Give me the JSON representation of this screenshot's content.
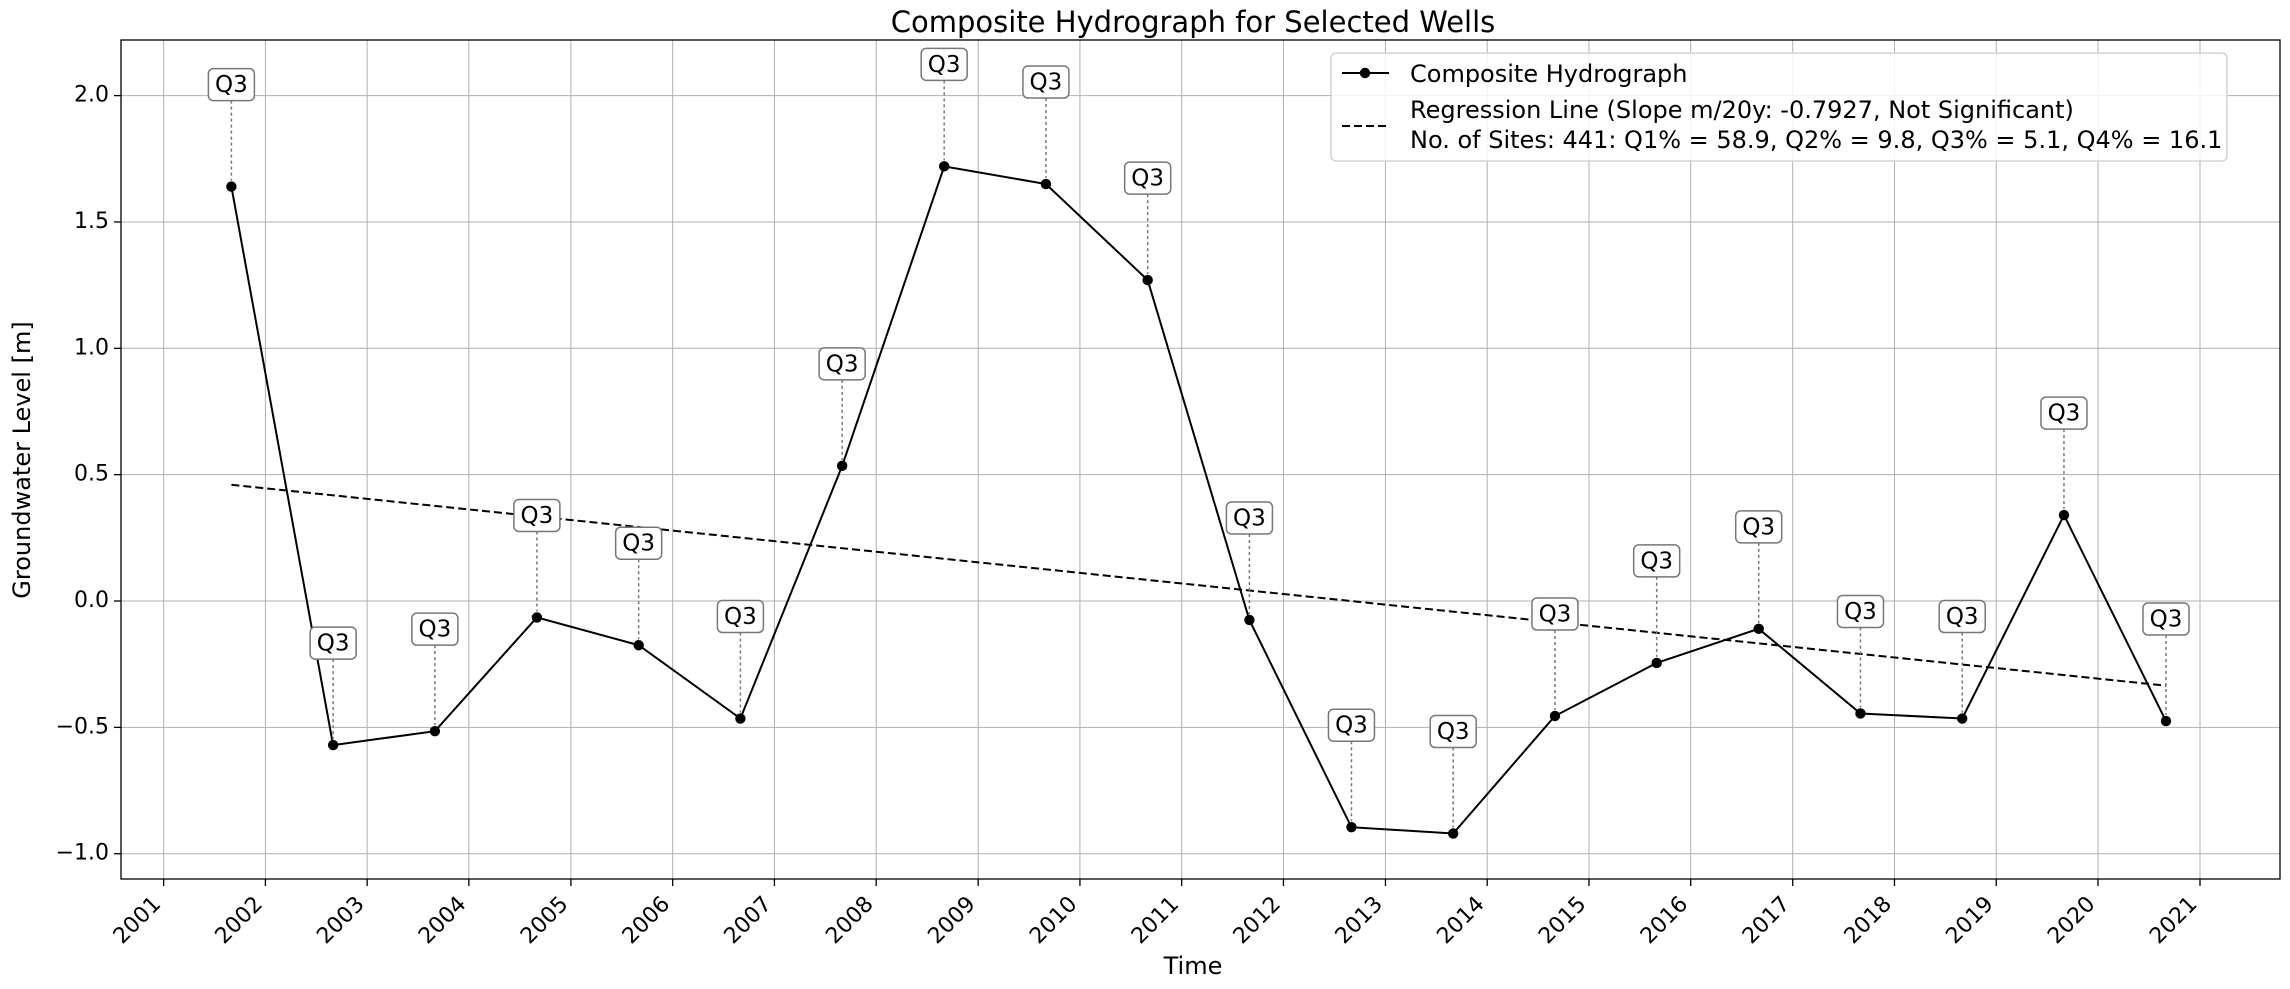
{
  "chart_data": {
    "type": "line",
    "title": "Composite Hydrograph for Selected Wells",
    "xlabel": "Time",
    "ylabel": "Groundwater Level [m]",
    "xlim": [
      "2000-08-01",
      "2021-10-15"
    ],
    "ylim": [
      -1.1,
      2.22
    ],
    "grid": true,
    "legend_position": "top-right",
    "x_tick_labels": [
      "2001",
      "2002",
      "2003",
      "2004",
      "2005",
      "2006",
      "2007",
      "2008",
      "2009",
      "2010",
      "2011",
      "2012",
      "2013",
      "2014",
      "2015",
      "2016",
      "2017",
      "2018",
      "2019",
      "2020",
      "2021"
    ],
    "y_tick_labels": [
      "−1.0",
      "−0.5",
      "0.0",
      "0.5",
      "1.0",
      "1.5",
      "2.0"
    ],
    "series": [
      {
        "name": "Composite Hydrograph",
        "style": "solid line with circle markers",
        "color": "#000000",
        "x": [
          "2001-09-01",
          "2002-09-01",
          "2003-09-01",
          "2004-09-01",
          "2005-09-01",
          "2006-09-01",
          "2007-09-01",
          "2008-09-01",
          "2009-09-01",
          "2010-09-01",
          "2011-09-01",
          "2012-09-01",
          "2013-09-01",
          "2014-09-01",
          "2015-09-01",
          "2016-09-01",
          "2017-09-01",
          "2018-09-01",
          "2019-09-01",
          "2020-09-01"
        ],
        "y": [
          1.64,
          -0.57,
          -0.515,
          -0.065,
          -0.175,
          -0.465,
          0.535,
          1.72,
          1.65,
          1.27,
          -0.075,
          -0.895,
          -0.92,
          -0.455,
          -0.245,
          -0.11,
          -0.445,
          -0.465,
          0.34,
          -0.475
        ],
        "annotations": [
          "Q3",
          "Q3",
          "Q3",
          "Q3",
          "Q3",
          "Q3",
          "Q3",
          "Q3",
          "Q3",
          "Q3",
          "Q3",
          "Q3",
          "Q3",
          "Q3",
          "Q3",
          "Q3",
          "Q3",
          "Q3",
          "Q3",
          "Q3"
        ]
      },
      {
        "name": "Regression Line (Slope m/20y: -0.7927, Not Significant)",
        "style": "dashed",
        "color": "#000000",
        "x": [
          "2001-09-01",
          "2020-09-01"
        ],
        "y": [
          0.46,
          -0.335
        ]
      }
    ],
    "legend_extra_text": "No. of Sites: 441: Q1% = 58.9, Q2% = 9.8, Q3% = 5.1, Q4% = 16.1"
  }
}
